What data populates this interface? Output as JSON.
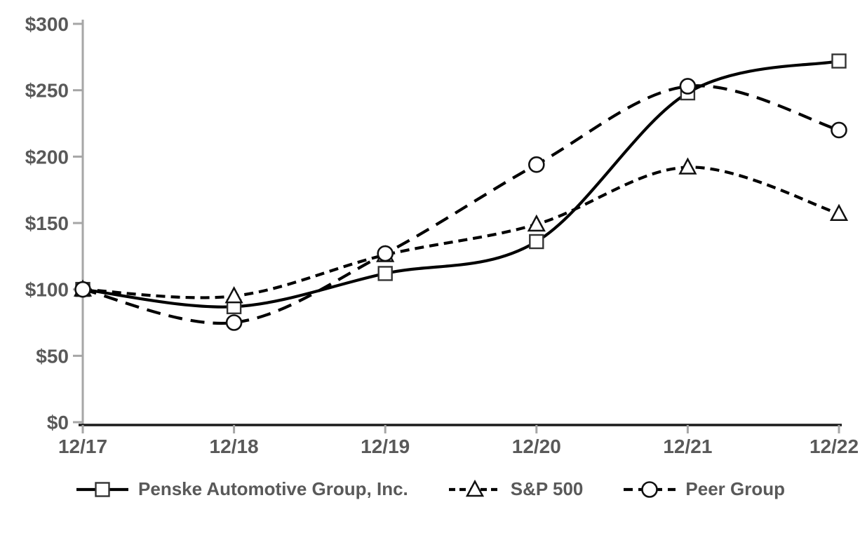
{
  "chart_data": {
    "type": "line",
    "title": "",
    "xlabel": "",
    "ylabel": "",
    "categories": [
      "12/17",
      "12/18",
      "12/19",
      "12/20",
      "12/21",
      "12/22"
    ],
    "series": [
      {
        "name": "Penske Automotive Group, Inc.",
        "values": [
          100,
          87,
          112,
          136,
          248,
          272
        ],
        "line_style": "solid",
        "marker": "square",
        "color": "#000000"
      },
      {
        "name": "S&P 500",
        "values": [
          100,
          95,
          126,
          149,
          192,
          157
        ],
        "line_style": "dashed",
        "marker": "triangle",
        "color": "#000000"
      },
      {
        "name": "Peer Group",
        "values": [
          100,
          75,
          127,
          194,
          253,
          220
        ],
        "line_style": "long-dash",
        "marker": "circle",
        "color": "#000000"
      }
    ],
    "ylim": [
      0,
      300
    ],
    "ytick_step": 50,
    "ytick_labels": [
      "$0",
      "$50",
      "$100",
      "$150",
      "$200",
      "$250",
      "$300"
    ],
    "grid": false,
    "legend_position": "bottom",
    "smooth_lines": true,
    "colors": {
      "axis_line": "#a6a6a6",
      "x_axis_line": "#1a1a1a",
      "tick_label": "#595959",
      "series_line": "#000000",
      "marker_fill": "#ffffff",
      "background": "#ffffff"
    }
  }
}
